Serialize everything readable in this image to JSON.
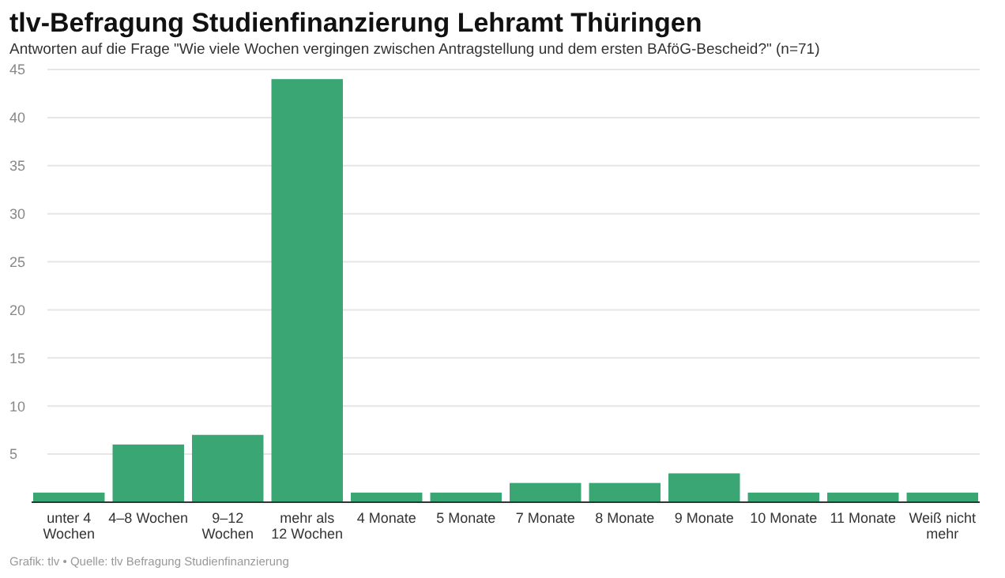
{
  "chart_data": {
    "type": "bar",
    "title": "tlv-Befragung Studienfinanzierung Lehramt Thüringen",
    "subtitle": "Antworten auf die Frage \"Wie viele Wochen vergingen zwischen Antragstellung und dem ersten BAföG-Bescheid?\" (n=71)",
    "categories": [
      "unter 4 Wochen",
      "4–8 Wochen",
      "9–12 Wochen",
      "mehr als 12 Wochen",
      "4 Monate",
      "5 Monate",
      "7 Monate",
      "8 Monate",
      "9 Monate",
      "10 Monate",
      "11 Monate",
      "Weiß nicht mehr"
    ],
    "values": [
      1,
      6,
      7,
      44,
      1,
      1,
      2,
      2,
      3,
      1,
      1,
      1
    ],
    "color": "#3aa673",
    "ylim": [
      0,
      45
    ],
    "yticks": [
      5,
      10,
      15,
      20,
      25,
      30,
      35,
      40,
      45
    ],
    "grid": "y",
    "annotations": [
      "Grafik: tlv • Quelle: tlv Befragung Studienfinanzierung"
    ]
  }
}
